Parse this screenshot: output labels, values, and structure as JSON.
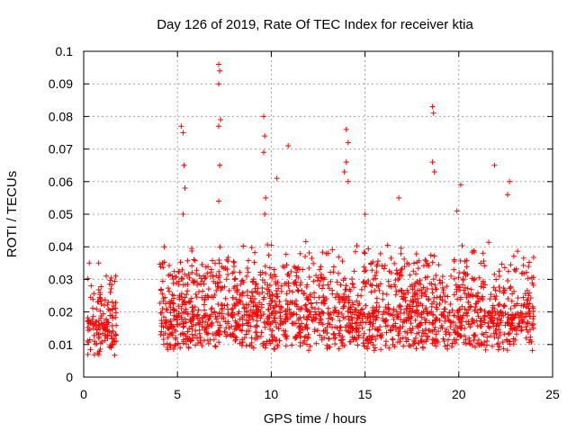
{
  "chart_data": {
    "type": "scatter",
    "title": "Day 126 of 2019, Rate Of TEC Index for receiver ktia",
    "xlabel": "GPS time / hours",
    "ylabel": "ROTI / TECUs",
    "xlim": [
      0,
      25
    ],
    "ylim": [
      0,
      0.1
    ],
    "xticks": [
      "0",
      "5",
      "10",
      "15",
      "20",
      "25"
    ],
    "yticks": [
      "0",
      "0.01",
      "0.02",
      "0.03",
      "0.04",
      "0.05",
      "0.06",
      "0.07",
      "0.08",
      "0.09",
      "0.1"
    ],
    "grid": true,
    "marker": "plus",
    "color": "#ff0000",
    "series": [
      {
        "name": "ROTI",
        "segments": [
          {
            "start": 0.2,
            "end": 1.75,
            "base": 0.012,
            "spread": 0.018,
            "count": 140
          },
          {
            "start": 4.05,
            "end": 24.0,
            "base": 0.014,
            "spread": 0.022,
            "count": 1900
          }
        ],
        "notable_points": [
          [
            0.3,
            0.035
          ],
          [
            0.4,
            0.028
          ],
          [
            0.8,
            0.035
          ],
          [
            1.2,
            0.031
          ],
          [
            1.7,
            0.031
          ],
          [
            4.2,
            0.035
          ],
          [
            4.3,
            0.04
          ],
          [
            5.2,
            0.077
          ],
          [
            5.3,
            0.075
          ],
          [
            5.35,
            0.065
          ],
          [
            5.4,
            0.058
          ],
          [
            5.3,
            0.05
          ],
          [
            7.2,
            0.096
          ],
          [
            7.25,
            0.094
          ],
          [
            7.2,
            0.09
          ],
          [
            7.3,
            0.079
          ],
          [
            7.2,
            0.077
          ],
          [
            7.25,
            0.065
          ],
          [
            7.2,
            0.054
          ],
          [
            9.6,
            0.08
          ],
          [
            9.65,
            0.074
          ],
          [
            9.6,
            0.069
          ],
          [
            9.7,
            0.055
          ],
          [
            9.65,
            0.05
          ],
          [
            10.3,
            0.061
          ],
          [
            10.9,
            0.071
          ],
          [
            14.0,
            0.076
          ],
          [
            14.1,
            0.072
          ],
          [
            14.0,
            0.066
          ],
          [
            13.9,
            0.063
          ],
          [
            14.1,
            0.06
          ],
          [
            18.6,
            0.083
          ],
          [
            18.65,
            0.081
          ],
          [
            18.6,
            0.066
          ],
          [
            18.7,
            0.063
          ],
          [
            20.1,
            0.059
          ],
          [
            21.9,
            0.065
          ],
          [
            22.7,
            0.06
          ],
          [
            22.6,
            0.056
          ],
          [
            19.9,
            0.051
          ],
          [
            16.8,
            0.055
          ],
          [
            15.0,
            0.05
          ]
        ]
      }
    ]
  }
}
